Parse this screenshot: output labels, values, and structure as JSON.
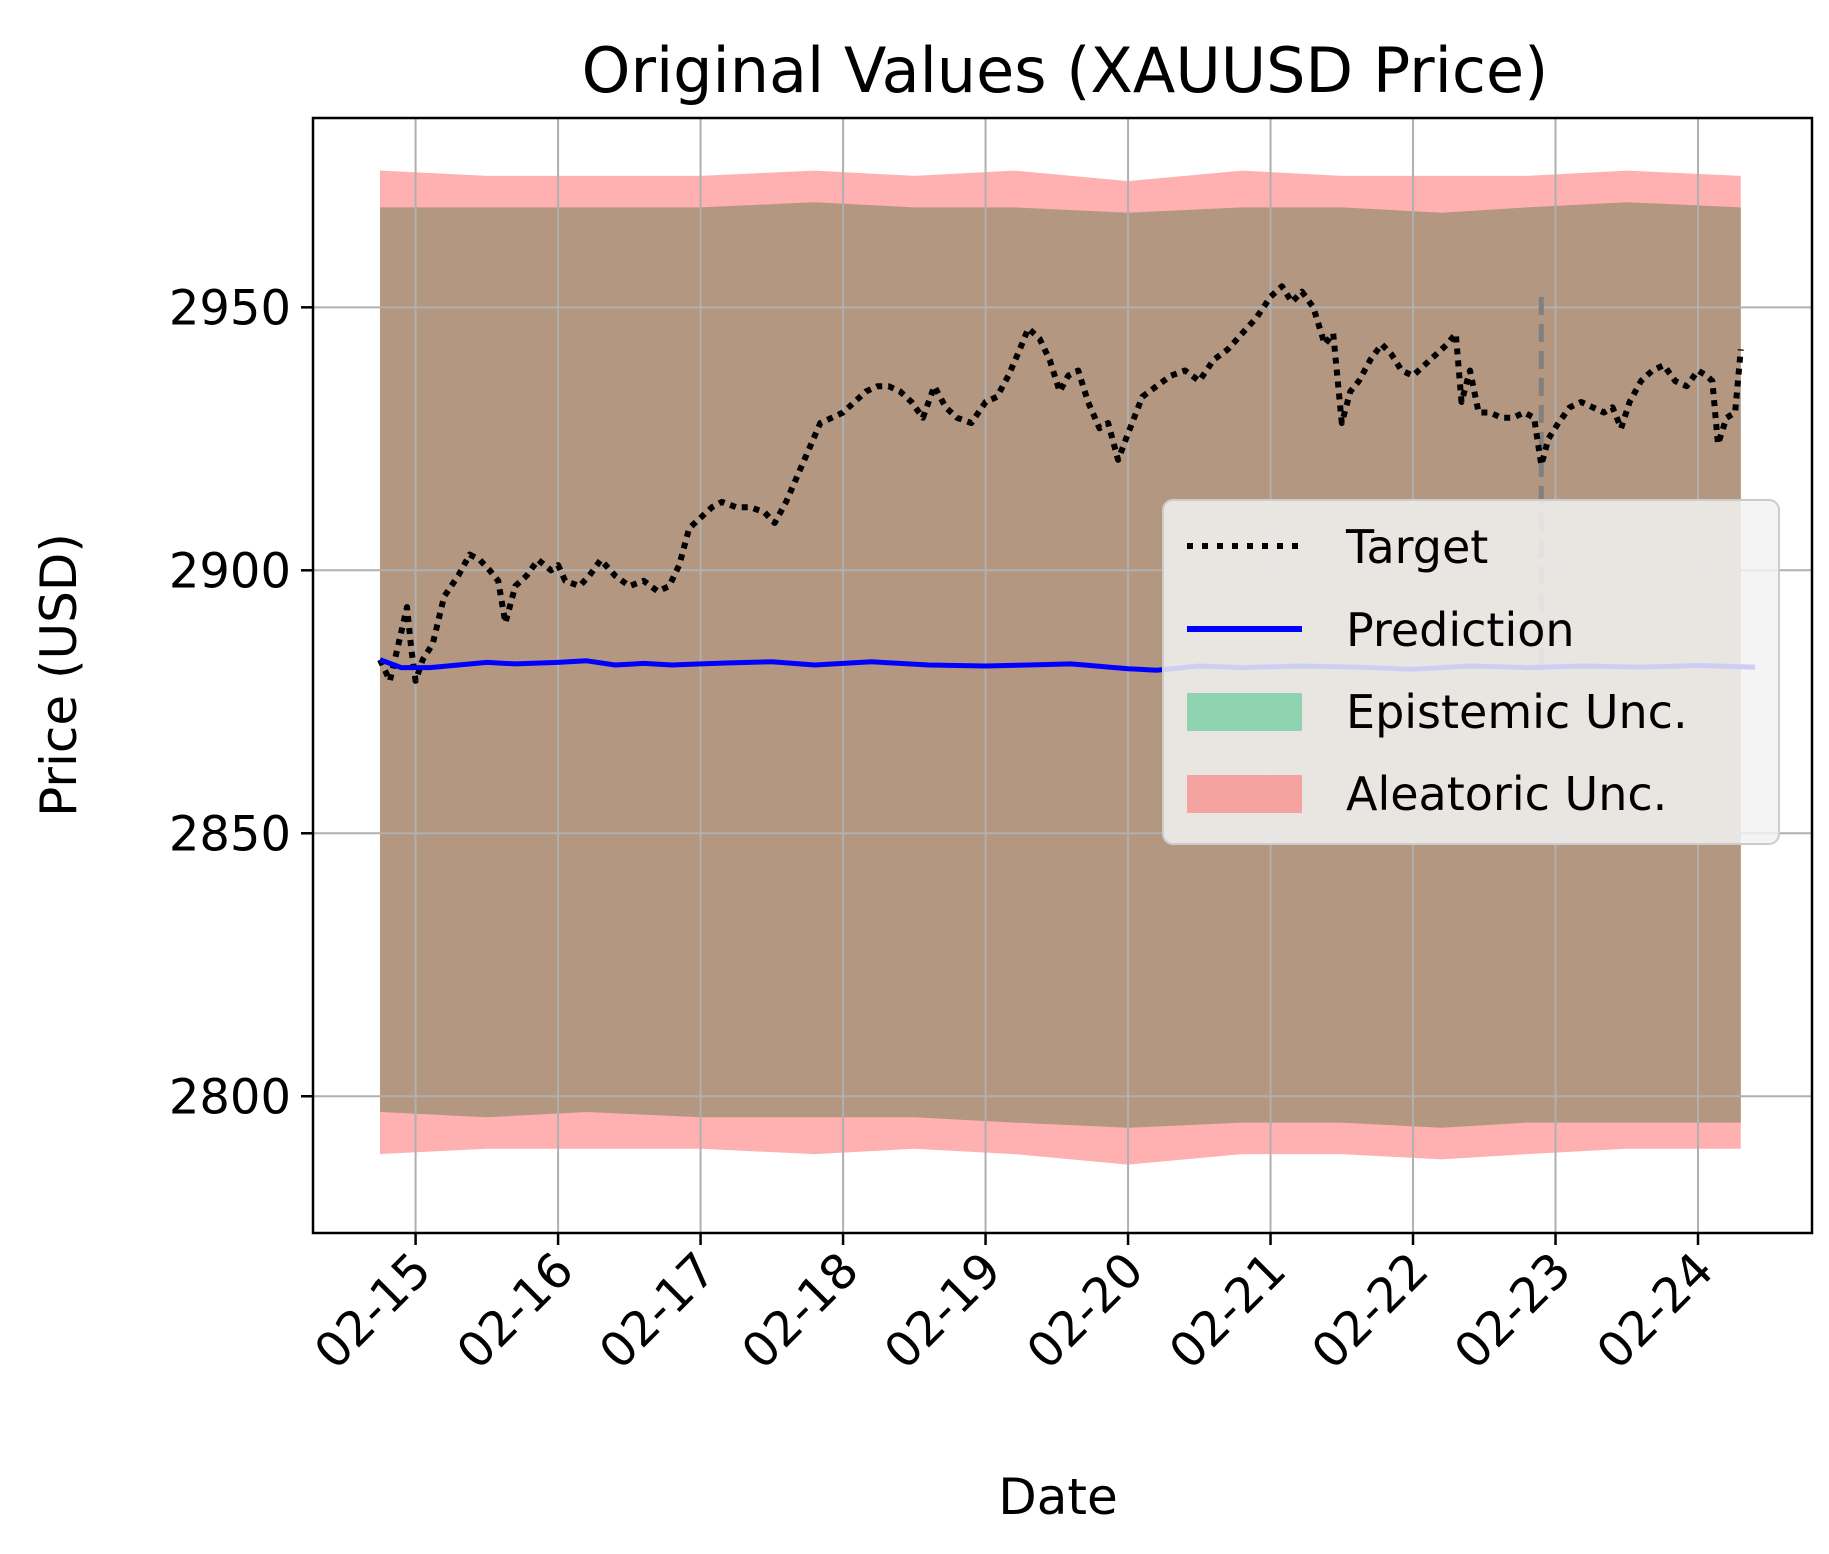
{
  "chart_data": {
    "type": "line",
    "title": "Original Values (XAUUSD Price)",
    "xlabel": "Date",
    "ylabel": "Price (USD)",
    "x_tick_labels": [
      "02-15",
      "02-16",
      "02-17",
      "02-18",
      "02-19",
      "02-20",
      "02-21",
      "02-22",
      "02-23",
      "02-24"
    ],
    "x_tick_days": [
      15,
      16,
      17,
      18,
      19,
      20,
      21,
      22,
      23,
      24
    ],
    "xlim": [
      14.28,
      24.8
    ],
    "y_ticks": [
      2800,
      2850,
      2900,
      2950
    ],
    "ylim": [
      2774,
      2986
    ],
    "grid": true,
    "legend_position": "center-right",
    "legend": [
      {
        "key": "target",
        "label": "Target",
        "style": "dotted-line",
        "color": "#000000"
      },
      {
        "key": "prediction",
        "label": "Prediction",
        "style": "solid-line",
        "color": "#0000ff"
      },
      {
        "key": "epistemic",
        "label": "Epistemic Unc.",
        "style": "patch",
        "color": "#8fd3b0"
      },
      {
        "key": "aleatoric",
        "label": "Aleatoric Unc.",
        "style": "patch",
        "color": "#f4a3a0"
      }
    ],
    "colors": {
      "target": "#000000",
      "prediction": "#0000ff",
      "aleatoric_fill": "#ffb0b0",
      "epistemic_fill": "#b39780",
      "vline": "#808080"
    },
    "vertical_marker_day": 22.9,
    "series": [
      {
        "name": "Target",
        "points": [
          [
            14.75,
            2883
          ],
          [
            14.82,
            2879
          ],
          [
            14.88,
            2886
          ],
          [
            14.94,
            2893
          ],
          [
            14.97,
            2885
          ],
          [
            15.0,
            2879
          ],
          [
            15.05,
            2883
          ],
          [
            15.12,
            2886
          ],
          [
            15.2,
            2895
          ],
          [
            15.3,
            2899
          ],
          [
            15.38,
            2903
          ],
          [
            15.45,
            2902
          ],
          [
            15.52,
            2900
          ],
          [
            15.58,
            2898
          ],
          [
            15.63,
            2890
          ],
          [
            15.7,
            2897
          ],
          [
            15.78,
            2899
          ],
          [
            15.86,
            2902
          ],
          [
            15.95,
            2900
          ],
          [
            16.0,
            2901
          ],
          [
            16.05,
            2898
          ],
          [
            16.15,
            2897
          ],
          [
            16.22,
            2899
          ],
          [
            16.3,
            2902
          ],
          [
            16.4,
            2899
          ],
          [
            16.5,
            2897
          ],
          [
            16.6,
            2898
          ],
          [
            16.7,
            2896
          ],
          [
            16.78,
            2897
          ],
          [
            16.85,
            2901
          ],
          [
            16.92,
            2908
          ],
          [
            17.0,
            2910
          ],
          [
            17.08,
            2912
          ],
          [
            17.15,
            2913
          ],
          [
            17.25,
            2912
          ],
          [
            17.35,
            2912
          ],
          [
            17.45,
            2911
          ],
          [
            17.52,
            2909
          ],
          [
            17.6,
            2913
          ],
          [
            17.68,
            2918
          ],
          [
            17.76,
            2923
          ],
          [
            17.84,
            2928
          ],
          [
            17.92,
            2929
          ],
          [
            18.0,
            2930
          ],
          [
            18.08,
            2932
          ],
          [
            18.16,
            2934
          ],
          [
            18.24,
            2935
          ],
          [
            18.32,
            2935
          ],
          [
            18.4,
            2934
          ],
          [
            18.48,
            2932
          ],
          [
            18.56,
            2929
          ],
          [
            18.64,
            2935
          ],
          [
            18.72,
            2931
          ],
          [
            18.8,
            2929
          ],
          [
            18.9,
            2928
          ],
          [
            19.0,
            2932
          ],
          [
            19.08,
            2933
          ],
          [
            19.16,
            2937
          ],
          [
            19.24,
            2942
          ],
          [
            19.3,
            2946
          ],
          [
            19.38,
            2944
          ],
          [
            19.45,
            2940
          ],
          [
            19.52,
            2934
          ],
          [
            19.58,
            2937
          ],
          [
            19.65,
            2938
          ],
          [
            19.72,
            2932
          ],
          [
            19.8,
            2927
          ],
          [
            19.86,
            2928
          ],
          [
            19.93,
            2921
          ],
          [
            20.0,
            2926
          ],
          [
            20.1,
            2933
          ],
          [
            20.2,
            2935
          ],
          [
            20.3,
            2937
          ],
          [
            20.4,
            2938
          ],
          [
            20.5,
            2936
          ],
          [
            20.6,
            2940
          ],
          [
            20.7,
            2942
          ],
          [
            20.8,
            2945
          ],
          [
            20.9,
            2948
          ],
          [
            21.0,
            2952
          ],
          [
            21.08,
            2954
          ],
          [
            21.15,
            2951
          ],
          [
            21.22,
            2953
          ],
          [
            21.3,
            2950
          ],
          [
            21.38,
            2943
          ],
          [
            21.44,
            2945
          ],
          [
            21.5,
            2928
          ],
          [
            21.56,
            2934
          ],
          [
            21.62,
            2936
          ],
          [
            21.7,
            2940
          ],
          [
            21.78,
            2943
          ],
          [
            21.85,
            2941
          ],
          [
            21.92,
            2938
          ],
          [
            22.0,
            2937
          ],
          [
            22.08,
            2939
          ],
          [
            22.16,
            2941
          ],
          [
            22.24,
            2943
          ],
          [
            22.3,
            2945
          ],
          [
            22.34,
            2932
          ],
          [
            22.4,
            2938
          ],
          [
            22.46,
            2930
          ],
          [
            22.54,
            2930
          ],
          [
            22.62,
            2929
          ],
          [
            22.7,
            2929
          ],
          [
            22.78,
            2930
          ],
          [
            22.85,
            2929
          ],
          [
            22.9,
            2920
          ],
          [
            22.95,
            2925
          ],
          [
            23.02,
            2928
          ],
          [
            23.1,
            2931
          ],
          [
            23.18,
            2932
          ],
          [
            23.26,
            2931
          ],
          [
            23.34,
            2930
          ],
          [
            23.4,
            2931
          ],
          [
            23.46,
            2927
          ],
          [
            23.52,
            2932
          ],
          [
            23.6,
            2936
          ],
          [
            23.68,
            2938
          ],
          [
            23.76,
            2939
          ],
          [
            23.84,
            2936
          ],
          [
            23.92,
            2935
          ],
          [
            24.0,
            2938
          ],
          [
            24.06,
            2937
          ],
          [
            24.1,
            2936
          ],
          [
            24.14,
            2924
          ],
          [
            24.2,
            2929
          ],
          [
            24.26,
            2930
          ],
          [
            24.3,
            2942
          ]
        ]
      },
      {
        "name": "Prediction",
        "points": [
          [
            14.75,
            2883
          ],
          [
            14.9,
            2881.5
          ],
          [
            15.1,
            2881.5
          ],
          [
            15.3,
            2882
          ],
          [
            15.5,
            2882.5
          ],
          [
            15.7,
            2882.2
          ],
          [
            16.0,
            2882.5
          ],
          [
            16.2,
            2882.8
          ],
          [
            16.4,
            2882
          ],
          [
            16.6,
            2882.3
          ],
          [
            16.8,
            2882
          ],
          [
            17.0,
            2882.2
          ],
          [
            17.2,
            2882.4
          ],
          [
            17.5,
            2882.6
          ],
          [
            17.8,
            2882
          ],
          [
            18.2,
            2882.6
          ],
          [
            18.6,
            2882
          ],
          [
            19.0,
            2881.8
          ],
          [
            19.3,
            2882
          ],
          [
            19.6,
            2882.2
          ],
          [
            20.0,
            2881.3
          ],
          [
            20.2,
            2881
          ],
          [
            20.5,
            2881.8
          ],
          [
            20.8,
            2881.5
          ],
          [
            21.2,
            2881.8
          ],
          [
            21.6,
            2881.6
          ],
          [
            22.0,
            2881.2
          ],
          [
            22.4,
            2881.8
          ],
          [
            22.8,
            2881.5
          ],
          [
            23.2,
            2881.8
          ],
          [
            23.6,
            2881.6
          ],
          [
            24.0,
            2881.9
          ],
          [
            24.4,
            2881.6
          ]
        ]
      }
    ],
    "aleatoric_band": {
      "x": [
        14.75,
        15.5,
        16.2,
        17.0,
        17.8,
        18.5,
        19.2,
        20.0,
        20.8,
        21.5,
        22.2,
        22.8,
        23.5,
        24.3
      ],
      "upper": [
        2976,
        2975,
        2975,
        2975,
        2976,
        2975,
        2976,
        2974,
        2976,
        2975,
        2975,
        2975,
        2976,
        2975
      ],
      "lower": [
        2789,
        2790,
        2790,
        2790,
        2789,
        2790,
        2789,
        2787,
        2789,
        2789,
        2788,
        2789,
        2790,
        2790
      ]
    },
    "epistemic_band": {
      "x": [
        14.75,
        15.5,
        16.2,
        17.0,
        17.8,
        18.5,
        19.2,
        20.0,
        20.8,
        21.5,
        22.2,
        22.8,
        23.5,
        24.3
      ],
      "upper": [
        2969,
        2969,
        2969,
        2969,
        2970,
        2969,
        2969,
        2968,
        2969,
        2969,
        2968,
        2969,
        2970,
        2969
      ],
      "lower": [
        2797,
        2796,
        2797,
        2796,
        2796,
        2796,
        2795,
        2794,
        2795,
        2795,
        2794,
        2795,
        2795,
        2795
      ]
    }
  }
}
